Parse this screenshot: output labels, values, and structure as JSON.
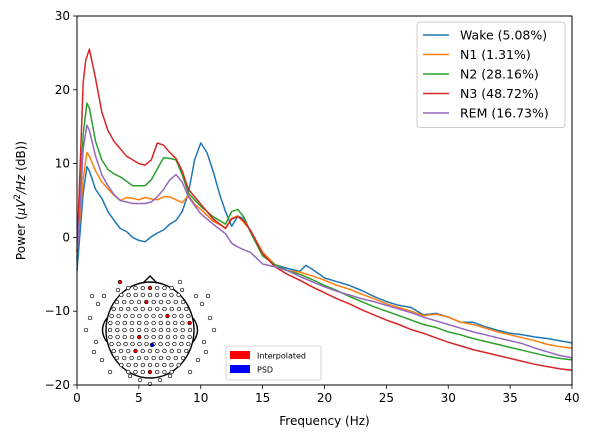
{
  "chart_data": {
    "type": "line",
    "xlabel": "Frequency (Hz)",
    "ylabel_parts": [
      "Power (",
      "μV",
      "2",
      "/",
      "Hz",
      " (dB))"
    ],
    "xlim": [
      0,
      40
    ],
    "ylim": [
      -20,
      30
    ],
    "x_ticks": [
      0,
      5,
      10,
      15,
      20,
      25,
      30,
      35,
      40
    ],
    "y_ticks": [
      -20,
      -10,
      0,
      10,
      20,
      30
    ],
    "grid": false,
    "legend_position": "top-right",
    "series": [
      {
        "name": "Wake (5.08%)",
        "color": "#1f77b4",
        "x": [
          0,
          0.5,
          0.8,
          1,
          1.5,
          2,
          2.5,
          3,
          3.5,
          4,
          4.5,
          5,
          5.5,
          6,
          6.5,
          7,
          7.5,
          8,
          8.5,
          9,
          9.5,
          10,
          10.5,
          11,
          11.5,
          12,
          12.5,
          13,
          13.5,
          14,
          15,
          16,
          17,
          18,
          18.5,
          19,
          20,
          21,
          22,
          23,
          24,
          25,
          26,
          27,
          28,
          29,
          30,
          31,
          32,
          33,
          34,
          35,
          36,
          37,
          38,
          39,
          40
        ],
        "y": [
          -4.5,
          6,
          9.6,
          9,
          6.5,
          5.3,
          3.5,
          2.3,
          1.2,
          0.8,
          0,
          -0.4,
          -0.6,
          0.1,
          0.6,
          1,
          1.8,
          2.3,
          3.5,
          6,
          10.5,
          12.8,
          11.5,
          9,
          6,
          3.5,
          1.5,
          2.9,
          2.5,
          0.8,
          -2.5,
          -3.7,
          -4.2,
          -4.6,
          -3.8,
          -4.3,
          -5.5,
          -6,
          -6.5,
          -7.2,
          -8,
          -8.7,
          -9.2,
          -9.5,
          -10.5,
          -10.3,
          -10.8,
          -11.5,
          -11.5,
          -12.1,
          -12.6,
          -13,
          -13.2,
          -13.5,
          -13.7,
          -14,
          -14.3
        ]
      },
      {
        "name": "N1 (1.31%)",
        "color": "#ff7f0e",
        "x": [
          0,
          0.5,
          0.8,
          1,
          1.5,
          2,
          2.5,
          3,
          3.5,
          4,
          4.5,
          5,
          5.5,
          6,
          6.5,
          7,
          7.5,
          8,
          8.5,
          9,
          9.5,
          10,
          11,
          12,
          12.5,
          13,
          14,
          15,
          16,
          17,
          18,
          19,
          20,
          21,
          22,
          23,
          24,
          25,
          26,
          27,
          28,
          29,
          30,
          31,
          32,
          33,
          34,
          35,
          36,
          37,
          38,
          39,
          40
        ],
        "y": [
          -2,
          8,
          11.5,
          11,
          9,
          7.5,
          6.6,
          5.7,
          5,
          5.4,
          5.3,
          5.1,
          5.4,
          5.2,
          5.1,
          5.5,
          5.5,
          5.1,
          4.7,
          5.7,
          4.5,
          3.8,
          2.2,
          1.3,
          2.6,
          2.9,
          1,
          -2,
          -3.7,
          -4.5,
          -4.7,
          -5.2,
          -5.8,
          -6.5,
          -7,
          -7.7,
          -8.3,
          -9,
          -9.5,
          -10,
          -10.6,
          -10.4,
          -10.8,
          -11.5,
          -11.8,
          -12.3,
          -12.8,
          -13.2,
          -13.6,
          -14,
          -14.5,
          -14.8,
          -15
        ]
      },
      {
        "name": "N2 (28.16%)",
        "color": "#2ca02c",
        "x": [
          0,
          0.5,
          0.8,
          1,
          1.5,
          2,
          2.5,
          3,
          3.5,
          4,
          4.5,
          5,
          5.5,
          6,
          6.5,
          7,
          7.5,
          8,
          8.5,
          9,
          10,
          11,
          12,
          12.5,
          13,
          13.5,
          14,
          15,
          16,
          17,
          18,
          19,
          20,
          21,
          22,
          23,
          24,
          25,
          26,
          27,
          28,
          29,
          30,
          31,
          32,
          33,
          34,
          35,
          36,
          37,
          38,
          39,
          40
        ],
        "y": [
          -3,
          14,
          18.2,
          17.5,
          13,
          10.5,
          9.2,
          8.6,
          8.2,
          7.6,
          7,
          7,
          7,
          7.8,
          9.3,
          10.8,
          10.7,
          10.5,
          8.5,
          6,
          4.2,
          2.8,
          1.8,
          3.5,
          3.8,
          2.7,
          0.8,
          -2.5,
          -3.7,
          -4.5,
          -5,
          -5.7,
          -6.5,
          -7.2,
          -8,
          -8.7,
          -9.4,
          -10,
          -10.6,
          -11.2,
          -11.8,
          -12.2,
          -12.8,
          -13.2,
          -13.7,
          -14.1,
          -14.5,
          -14.9,
          -15.3,
          -15.7,
          -16.1,
          -16.4,
          -16.6
        ]
      },
      {
        "name": "N3 (48.72%)",
        "color": "#d62728",
        "x": [
          0,
          0.5,
          0.7,
          1,
          1.5,
          2,
          2.5,
          3,
          3.5,
          4,
          4.5,
          5,
          5.5,
          6,
          6.5,
          7,
          7.5,
          8,
          8.5,
          9,
          10,
          11,
          12,
          12.5,
          13,
          13.5,
          14,
          15,
          16,
          17,
          18,
          19,
          20,
          21,
          22,
          23,
          24,
          25,
          26,
          27,
          28,
          29,
          30,
          31,
          32,
          33,
          34,
          35,
          36,
          37,
          38,
          39,
          40
        ],
        "y": [
          -2,
          21,
          24,
          25.5,
          21.5,
          17,
          14.5,
          13,
          12,
          11,
          10.5,
          10,
          9.8,
          10.5,
          12.8,
          12.5,
          11.5,
          10.7,
          9,
          6.5,
          4.5,
          2.5,
          1.2,
          2.5,
          2.8,
          2.2,
          1,
          -2.2,
          -4,
          -5,
          -5.8,
          -6.7,
          -7.5,
          -8.3,
          -9,
          -9.8,
          -10.5,
          -11.2,
          -11.8,
          -12.5,
          -13,
          -13.6,
          -14.2,
          -14.7,
          -15.2,
          -15.6,
          -16,
          -16.4,
          -16.8,
          -17.2,
          -17.5,
          -17.8,
          -18
        ]
      },
      {
        "name": "REM (16.73%)",
        "color": "#9467bd",
        "x": [
          0,
          0.5,
          0.8,
          1,
          1.5,
          2,
          2.5,
          3,
          3.5,
          4,
          4.5,
          5,
          5.5,
          6,
          6.5,
          7,
          7.5,
          8,
          8.5,
          9,
          10,
          11,
          12,
          12.5,
          13,
          13.5,
          14,
          15,
          16,
          17,
          18,
          19,
          20,
          21,
          22,
          23,
          24,
          25,
          26,
          27,
          28,
          29,
          30,
          31,
          32,
          33,
          34,
          35,
          36,
          37,
          38,
          39,
          40
        ],
        "y": [
          -3,
          12,
          15.2,
          14.5,
          11,
          8.5,
          7,
          5.8,
          5,
          4.8,
          4.6,
          4.6,
          4.6,
          4.8,
          5.5,
          6.5,
          7.8,
          8.5,
          7.5,
          5.5,
          3.2,
          1.8,
          0.5,
          -0.8,
          -1.3,
          -1.7,
          -2,
          -3.6,
          -4,
          -4.5,
          -5.3,
          -6,
          -6.7,
          -7.3,
          -7.8,
          -8.3,
          -8.7,
          -9.2,
          -9.7,
          -10.2,
          -10.8,
          -11.3,
          -11.8,
          -12.3,
          -12.8,
          -13.2,
          -13.6,
          -14,
          -14.4,
          -15,
          -15.5,
          -16,
          -16.3
        ]
      }
    ],
    "inset": {
      "legend": [
        {
          "label": "Interpolated",
          "color": "#ff0000"
        },
        {
          "label": "PSD",
          "color": "#0000ff"
        }
      ]
    }
  }
}
